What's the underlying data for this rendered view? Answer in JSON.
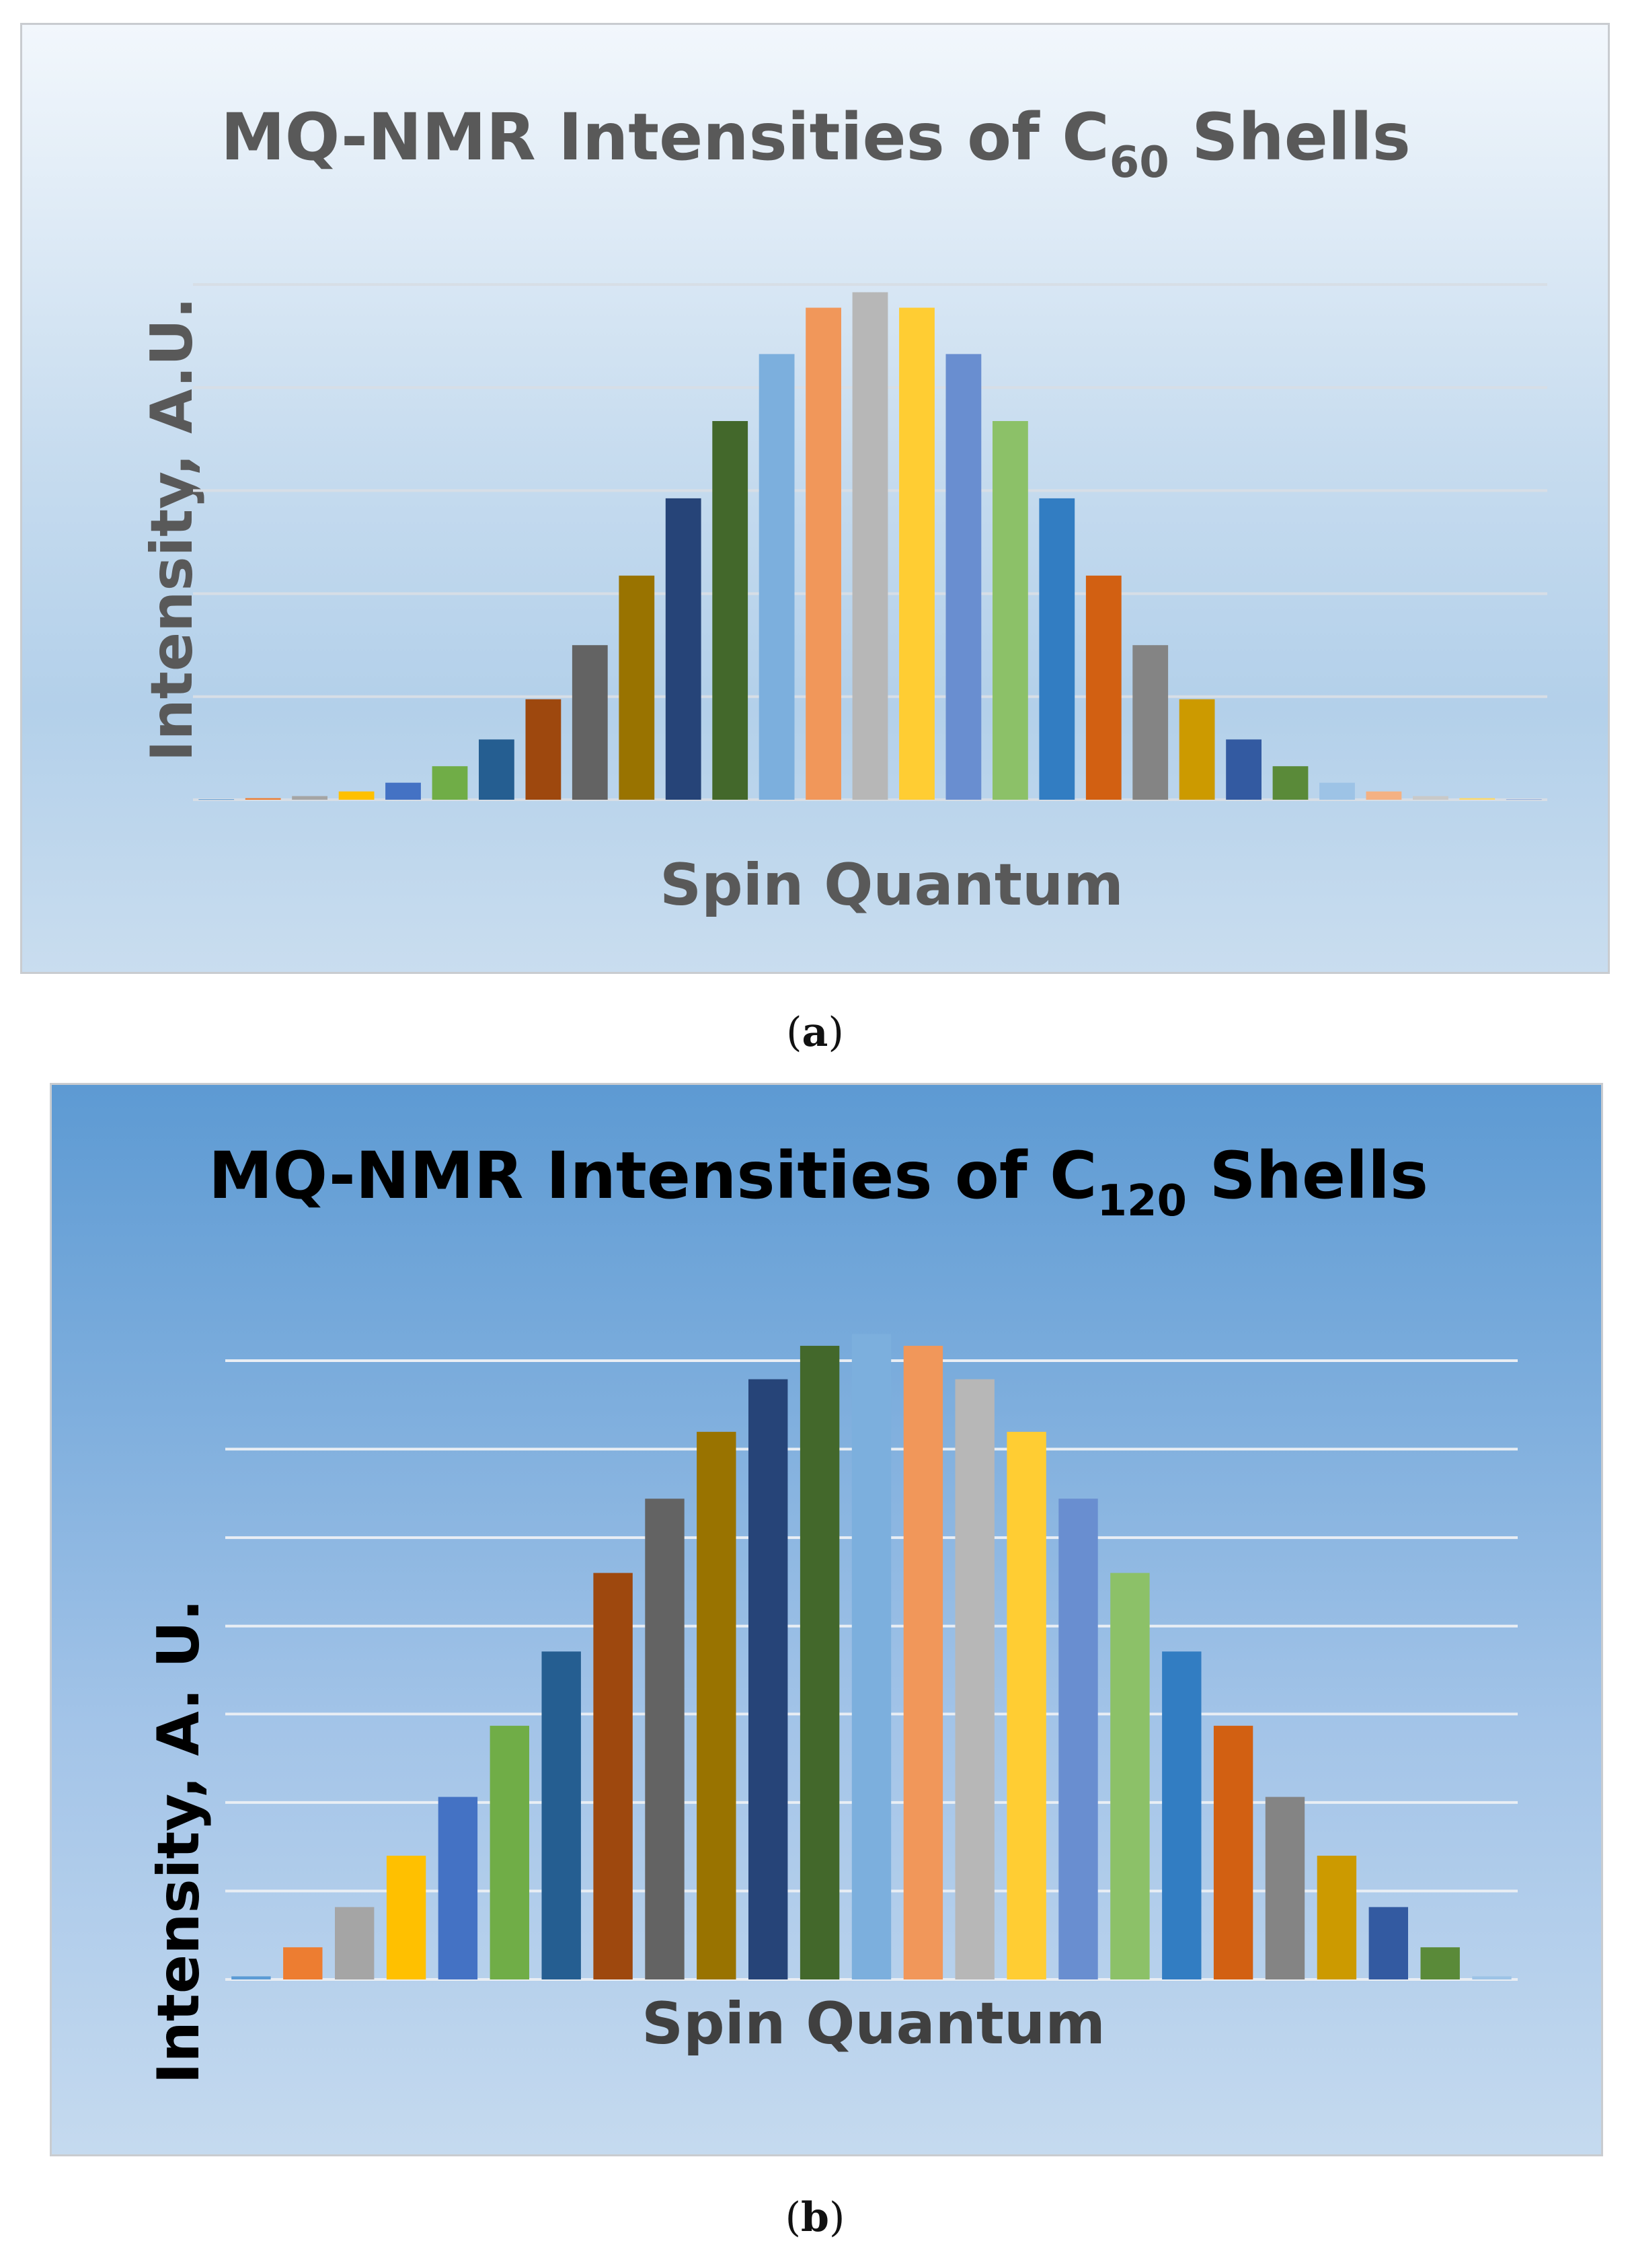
{
  "chart_data": [
    {
      "type": "bar",
      "panel": "a",
      "title": "MQ-NMR Intensities of C60 Shells",
      "title_main": "MQ-NMR Intensities of C",
      "title_sub": "60",
      "title_tail": " Shells",
      "xlabel": "Spin Quantum",
      "ylabel": "Intensity, A.U.",
      "ylim": [
        0,
        100
      ],
      "grid": true,
      "gridlines": [
        0,
        20,
        40,
        60,
        80,
        100
      ],
      "values": [
        0.1,
        0.3,
        0.7,
        1.6,
        3.3,
        6.5,
        11.7,
        19.5,
        30,
        43.5,
        58.5,
        73.5,
        86.5,
        95.5,
        98.5,
        95.5,
        86.5,
        73.5,
        58.5,
        43.5,
        30,
        19.5,
        11.7,
        6.5,
        3.3,
        1.6,
        0.7,
        0.3,
        0.1
      ],
      "colors": [
        "#5b9bd5",
        "#ed7d31",
        "#a5a5a5",
        "#ffc000",
        "#4472c4",
        "#70ad47",
        "#255e91",
        "#9e480e",
        "#636363",
        "#997300",
        "#264478",
        "#43682b",
        "#7cafdd",
        "#f1975a",
        "#b7b7b7",
        "#ffcd33",
        "#698ed0",
        "#8cc168",
        "#327dc2",
        "#d26012",
        "#848484",
        "#cc9a00",
        "#335aa1",
        "#5a8a39",
        "#9dc3e6",
        "#f4b183",
        "#c9c9c9",
        "#ffd966",
        "#8faadc"
      ]
    },
    {
      "type": "bar",
      "panel": "b",
      "title": "MQ-NMR Intensities of C120 Shells",
      "title_main": "MQ-NMR Intensities of C",
      "title_sub": "120",
      "title_tail": " Shells",
      "xlabel": "Spin Quantum",
      "ylabel": "Intensity, A. U.",
      "ylim": [
        0,
        100
      ],
      "grid": true,
      "gridlines": [
        0,
        14.3,
        28.6,
        42.9,
        57.1,
        71.4,
        85.7,
        100
      ],
      "values": [
        0.5,
        5.2,
        11.7,
        20,
        29.5,
        41,
        53,
        65.7,
        77.7,
        88.5,
        97,
        102.4,
        104.3,
        102.4,
        97,
        88.5,
        77.7,
        65.7,
        53,
        41,
        29.5,
        20,
        11.7,
        5.2,
        0.5
      ],
      "colors": [
        "#5b9bd5",
        "#ed7d31",
        "#a5a5a5",
        "#ffc000",
        "#4472c4",
        "#70ad47",
        "#255e91",
        "#9e480e",
        "#636363",
        "#997300",
        "#264478",
        "#43682b",
        "#7cafdd",
        "#f1975a",
        "#b7b7b7",
        "#ffcd33",
        "#698ed0",
        "#8cc168",
        "#327dc2",
        "#d26012",
        "#848484",
        "#cc9a00",
        "#335aa1",
        "#5a8a39",
        "#9dc3e6"
      ]
    }
  ],
  "captions": {
    "a": "a",
    "b": "b"
  }
}
